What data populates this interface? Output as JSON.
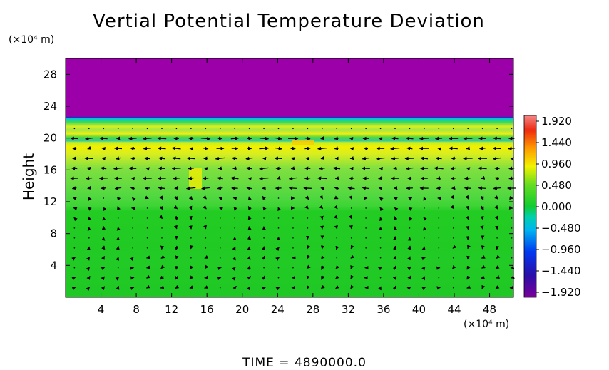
{
  "chart_data": {
    "type": "heatmap",
    "title": "Vertial Potential Temperature Deviation",
    "ylabel": "Height",
    "x_unit": "(×10⁴ m)",
    "y_unit": "(×10⁴ m)",
    "x_ticks": [
      "4",
      "8",
      "12",
      "16",
      "20",
      "24",
      "28",
      "32",
      "36",
      "40",
      "44",
      "48"
    ],
    "y_ticks": [
      "4",
      "8",
      "12",
      "16",
      "20",
      "24",
      "28"
    ],
    "xlim": [
      0,
      50.7
    ],
    "ylim": [
      0,
      30
    ],
    "colorbar": {
      "range": [
        -1.92,
        1.92
      ],
      "labels": [
        "1.920",
        "1.440",
        "0.960",
        "0.480",
        "0.000",
        "−0.480",
        "−0.960",
        "−1.440",
        "−1.920"
      ]
    },
    "regions": [
      {
        "name": "upper",
        "y_from": 22.5,
        "y_to": 30,
        "value": -1.92
      },
      {
        "name": "transition",
        "y_from": 19.8,
        "y_to": 22.5,
        "value": 0.5
      },
      {
        "name": "middle",
        "y_from": 11.0,
        "y_to": 19.8,
        "value": 0.25
      },
      {
        "name": "lower",
        "y_from": 0,
        "y_to": 11.0,
        "value": 0.05
      }
    ],
    "footer": "TIME  =  4890000.0"
  }
}
